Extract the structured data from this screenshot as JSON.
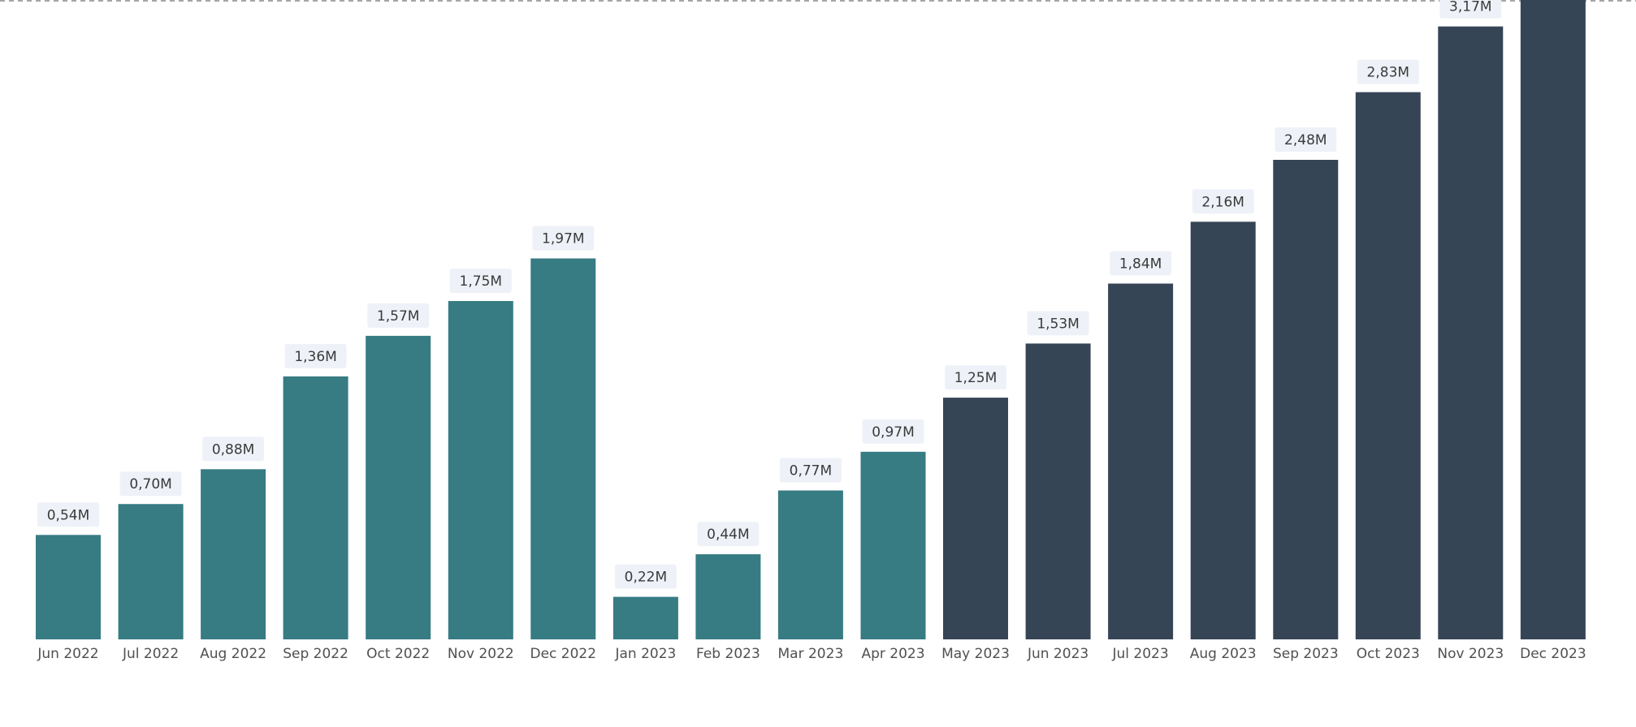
{
  "chart_data": {
    "type": "bar",
    "title": "",
    "xlabel": "",
    "ylabel": "",
    "ylim": [
      0,
      3.5
    ],
    "grid": false,
    "legend": "none",
    "categories": [
      "Jun 2022",
      "Jul 2022",
      "Aug 2022",
      "Sep 2022",
      "Oct 2022",
      "Nov 2022",
      "Dec 2022",
      "Jan 2023",
      "Feb 2023",
      "Mar 2023",
      "Apr 2023",
      "May 2023",
      "Jun 2023",
      "Jul 2023",
      "Aug 2023",
      "Sep 2023",
      "Oct 2023",
      "Nov 2023",
      "Dec 2023"
    ],
    "values": [
      0.54,
      0.7,
      0.88,
      1.36,
      1.57,
      1.75,
      1.97,
      0.22,
      0.44,
      0.77,
      0.97,
      1.25,
      1.53,
      1.84,
      2.16,
      2.48,
      2.83,
      3.17,
      3.5
    ],
    "labels": [
      "0,54M",
      "0,70M",
      "0,88M",
      "1,36M",
      "1,57M",
      "1,75M",
      "1,97M",
      "0,22M",
      "0,44M",
      "0,77M",
      "0,97M",
      "1,25M",
      "1,53M",
      "1,84M",
      "2,16M",
      "2,48M",
      "2,83M",
      "3,17M",
      ""
    ],
    "colors": [
      "#377b83",
      "#377b83",
      "#377b83",
      "#377b83",
      "#377b83",
      "#377b83",
      "#377b83",
      "#377b83",
      "#377b83",
      "#377b83",
      "#377b83",
      "#364555",
      "#364555",
      "#364555",
      "#364555",
      "#364555",
      "#364555",
      "#364555",
      "#364555"
    ],
    "label_background": "#eef2f8",
    "reference_line_color": "#888888"
  }
}
